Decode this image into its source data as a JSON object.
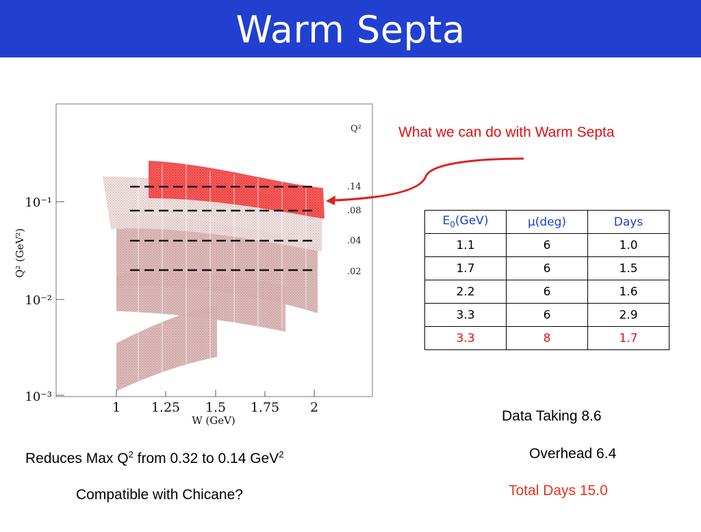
{
  "title": "Warm Septa",
  "callout": "What we can do with Warm Septa",
  "plot": {
    "x_axis_label": "W (GeV)",
    "y_axis_label": "Q² (GeV²)",
    "corner_label": "Q²",
    "x_ticks": [
      "1",
      "1.25",
      "1.5",
      "1.75",
      "2"
    ],
    "y_ticks": [
      "10⁻¹",
      "10⁻²",
      "10⁻³"
    ],
    "dashed_line_labels": [
      ".14",
      ".08",
      ".04",
      ".02"
    ],
    "colors": {
      "old_points": "#c9a0a0",
      "new_points": "#ee1111",
      "arrow": "#dd2222"
    }
  },
  "table": {
    "headers": {
      "energy": "E",
      "energy_sub": "0",
      "energy_unit": "(GeV)",
      "angle": "μ(deg)",
      "days": "Days"
    },
    "rows": [
      [
        "1.1",
        "6",
        "1.0"
      ],
      [
        "1.7",
        "6",
        "1.5"
      ],
      [
        "2.2",
        "6",
        "1.6"
      ],
      [
        "3.3",
        "6",
        "2.9"
      ],
      [
        "3.3",
        "8",
        "1.7"
      ]
    ]
  },
  "summary": {
    "data_taking": "Data Taking 8.6",
    "overhead": "Overhead 6.4",
    "total": "Total Days 15.0"
  },
  "reduces": {
    "prefix": "Reduces Max Q",
    "sup1": "2",
    "middle": " from 0.32 to 0.14 GeV",
    "sup2": "2"
  },
  "chicane_question": "Compatible with Chicane?"
}
